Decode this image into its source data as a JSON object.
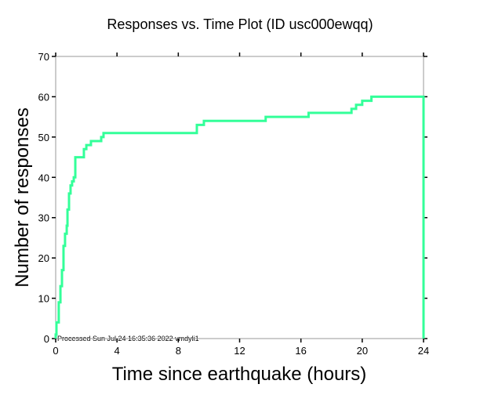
{
  "chart_data": {
    "type": "line",
    "title": "Responses vs. Time Plot (ID usc000ewqq)",
    "xlabel": "Time since earthquake (hours)",
    "ylabel": "Number of responses",
    "xlim": [
      0,
      24
    ],
    "ylim": [
      0,
      70
    ],
    "xticks": [
      0,
      4,
      8,
      12,
      16,
      20,
      24
    ],
    "yticks": [
      0,
      10,
      20,
      30,
      40,
      50,
      60,
      70
    ],
    "grid": false,
    "line_color": "#33ff99",
    "series": [
      {
        "name": "responses",
        "step": true,
        "x": [
          0,
          0.05,
          0.2,
          0.31,
          0.41,
          0.51,
          0.61,
          0.72,
          0.77,
          0.87,
          0.97,
          1.07,
          1.18,
          1.28,
          1.84,
          2.0,
          2.3,
          2.97,
          3.12,
          9.21,
          9.67,
          13.7,
          16.5,
          19.3,
          19.6,
          20.0,
          20.6,
          24,
          24
        ],
        "y": [
          1,
          4,
          9,
          13,
          17,
          23,
          26,
          28,
          32,
          36,
          38,
          39,
          40,
          45,
          47,
          48,
          49,
          50,
          51,
          53,
          54,
          55,
          56,
          57,
          58,
          59,
          60,
          60,
          0
        ]
      }
    ],
    "annotation": "Processed Sun Jul 24 16:35:36 2022 vmdyli1"
  }
}
